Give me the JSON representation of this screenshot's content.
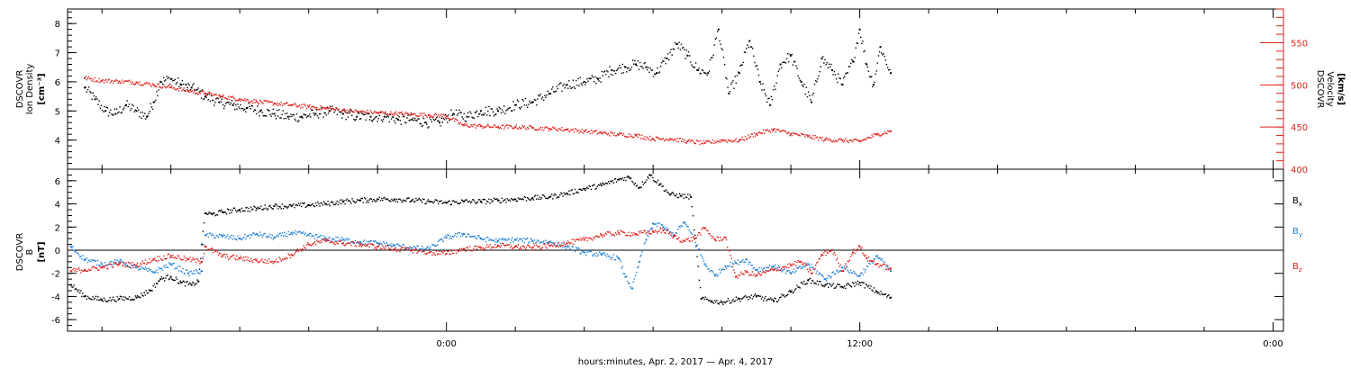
{
  "chart_data": [
    {
      "type": "scatter",
      "panel": "plasma",
      "ylabel_left": [
        "DSCOVR",
        "Ion Density",
        "[cm⁻³]"
      ],
      "ylabel_right": [
        "DSCOVR",
        "Velocity",
        "[km/s]"
      ],
      "ylim_left": [
        3,
        8.5
      ],
      "ylim_right": [
        400,
        590
      ],
      "yticks_left": [
        4,
        5,
        6,
        7,
        8
      ],
      "yticks_right": [
        400,
        450,
        500,
        550
      ],
      "left_axis_color": "#000000",
      "right_axis_color": "#e0201c",
      "series": [
        {
          "axis": "left",
          "color": "#000000",
          "x": [
            -10.5,
            -10.2,
            -9.9,
            -9.6,
            -9.3,
            -9.0,
            -8.7,
            -8.5,
            -8.3,
            -8.0,
            -7.7,
            -7.4,
            -7.0,
            -6.6,
            -6.2,
            -5.8,
            -5.4,
            -5.0,
            -4.6,
            -4.2,
            -3.8,
            -3.4,
            -3.0,
            -2.6,
            -2.2,
            -1.8,
            -1.4,
            -1.0,
            -0.6,
            -0.2,
            0.2,
            0.6,
            1.0,
            1.5,
            2.0,
            2.5,
            3.0,
            3.5,
            4.0,
            4.4,
            4.8,
            5.2,
            5.5,
            5.8,
            6.1,
            6.4,
            6.7,
            7.0,
            7.3,
            7.6,
            7.9,
            8.2,
            8.5,
            8.8,
            9.1,
            9.4,
            9.7,
            10.0,
            10.3,
            10.6,
            10.9,
            11.2,
            11.5,
            11.8,
            12.0,
            12.2,
            12.4,
            12.6,
            12.9
          ],
          "y": [
            5.8,
            5.4,
            5.0,
            4.9,
            5.2,
            5.0,
            4.8,
            5.3,
            6.0,
            6.1,
            5.9,
            5.8,
            5.5,
            5.3,
            5.2,
            5.1,
            5.0,
            4.9,
            4.8,
            4.8,
            4.9,
            5.0,
            4.9,
            4.8,
            4.8,
            4.8,
            4.7,
            4.7,
            4.6,
            4.6,
            4.9,
            4.8,
            5.0,
            5.0,
            5.2,
            5.3,
            5.6,
            5.9,
            6.0,
            6.1,
            6.4,
            6.5,
            6.6,
            6.5,
            6.3,
            6.8,
            7.3,
            6.9,
            6.4,
            6.3,
            7.8,
            5.6,
            6.3,
            7.4,
            6.0,
            5.2,
            6.6,
            6.9,
            6.0,
            5.3,
            6.8,
            6.4,
            5.9,
            6.7,
            7.8,
            6.6,
            5.9,
            7.2,
            6.3
          ]
        },
        {
          "axis": "right",
          "color": "#e0201c",
          "x": [
            -10.5,
            -10.0,
            -9.5,
            -9.0,
            -8.5,
            -8.0,
            -7.5,
            -7.0,
            -6.5,
            -6.0,
            -5.5,
            -5.0,
            -4.5,
            -4.0,
            -3.5,
            -3.0,
            -2.5,
            -2.0,
            -1.5,
            -1.0,
            -0.5,
            0.0,
            0.5,
            1.0,
            1.5,
            2.0,
            2.5,
            3.0,
            3.5,
            4.0,
            4.5,
            5.0,
            5.5,
            6.0,
            6.5,
            7.0,
            7.5,
            8.0,
            8.5,
            9.0,
            9.5,
            10.0,
            10.5,
            11.0,
            11.5,
            12.0,
            12.5,
            12.9
          ],
          "y": [
            508,
            505,
            504,
            503,
            500,
            497,
            493,
            490,
            486,
            483,
            480,
            478,
            476,
            474,
            472,
            470,
            468,
            467,
            466,
            465,
            464,
            463,
            452,
            451,
            450,
            450,
            449,
            448,
            447,
            445,
            443,
            441,
            440,
            436,
            436,
            433,
            431,
            434,
            434,
            442,
            447,
            442,
            439,
            435,
            434,
            433,
            441,
            445
          ]
        }
      ]
    },
    {
      "type": "scatter",
      "panel": "magnetic-field",
      "ylabel_left": [
        "DSCOVR",
        "B",
        "[nT]"
      ],
      "ylim": [
        -7,
        7
      ],
      "yticks": [
        -6,
        -4,
        -2,
        0,
        2,
        4,
        6
      ],
      "zero_line": true,
      "legend": [
        "B",
        "B",
        "B"
      ],
      "legend_subscripts": [
        "x",
        "y",
        "z"
      ],
      "legend_placement": "right",
      "series": [
        {
          "color": "#000000",
          "x": [
            -10.9,
            -10.5,
            -10.0,
            -9.5,
            -9.0,
            -8.6,
            -8.3,
            -8.0,
            -7.7,
            -7.4,
            -7.2,
            -7.1,
            -7.0,
            -6.8,
            -6.5,
            -6.0,
            -5.5,
            -5.0,
            -4.5,
            -4.0,
            -3.5,
            -3.0,
            -2.5,
            -2.0,
            -1.5,
            -1.0,
            -0.5,
            0.0,
            0.5,
            1.0,
            1.5,
            2.0,
            2.5,
            3.0,
            3.5,
            4.0,
            4.5,
            5.0,
            5.3,
            5.6,
            5.9,
            6.2,
            6.5,
            6.8,
            7.1,
            7.4,
            7.7,
            8.0,
            8.5,
            9.0,
            9.5,
            10.0,
            10.5,
            11.0,
            11.5,
            12.0,
            12.5,
            12.9
          ],
          "y": [
            -3.0,
            -4.0,
            -4.3,
            -4.2,
            -4.1,
            -3.5,
            -2.5,
            -2.3,
            -2.8,
            -3.0,
            -2.7,
            0.5,
            3.2,
            3.1,
            3.3,
            3.5,
            3.6,
            3.8,
            3.8,
            3.9,
            4.0,
            4.2,
            4.3,
            4.4,
            4.4,
            4.3,
            4.2,
            4.1,
            4.2,
            4.2,
            4.3,
            4.4,
            4.5,
            4.6,
            4.9,
            5.3,
            5.6,
            6.1,
            6.3,
            5.4,
            6.5,
            5.7,
            4.8,
            4.7,
            4.6,
            -4.2,
            -4.4,
            -4.5,
            -4.2,
            -4.0,
            -4.4,
            -3.6,
            -2.6,
            -3.0,
            -3.2,
            -2.8,
            -3.6,
            -4.1
          ]
        },
        {
          "color": "#1f7fd4",
          "x": [
            -10.9,
            -10.5,
            -10.0,
            -9.5,
            -9.0,
            -8.5,
            -8.0,
            -7.5,
            -7.1,
            -7.0,
            -6.5,
            -6.0,
            -5.5,
            -5.0,
            -4.5,
            -4.0,
            -3.5,
            -3.0,
            -2.5,
            -2.0,
            -1.5,
            -1.0,
            -0.5,
            0.0,
            0.5,
            1.0,
            1.5,
            2.0,
            2.5,
            3.0,
            3.5,
            4.0,
            4.5,
            5.0,
            5.2,
            5.4,
            5.6,
            5.8,
            6.0,
            6.3,
            6.6,
            6.9,
            7.2,
            7.5,
            7.8,
            8.1,
            8.4,
            8.7,
            9.0,
            9.5,
            10.0,
            10.5,
            11.0,
            11.5,
            12.0,
            12.5,
            12.9
          ],
          "y": [
            0.3,
            -0.8,
            -1.2,
            -1.0,
            -1.5,
            -1.9,
            -1.2,
            -2.0,
            -1.8,
            1.3,
            1.2,
            1.0,
            1.4,
            1.1,
            1.5,
            1.3,
            1.0,
            0.9,
            0.7,
            0.6,
            0.4,
            0.2,
            0.1,
            1.1,
            1.4,
            1.0,
            0.8,
            0.9,
            0.8,
            0.7,
            0.3,
            -0.2,
            -0.4,
            -0.7,
            -2.3,
            -3.3,
            -1.0,
            0.9,
            2.3,
            2.0,
            1.3,
            2.4,
            1.0,
            -1.2,
            -2.2,
            -1.4,
            -1.1,
            -0.8,
            -1.7,
            -1.4,
            -2.0,
            -1.2,
            -2.5,
            -1.5,
            -2.2,
            -0.5,
            -1.8
          ]
        },
        {
          "color": "#e0201c",
          "x": [
            -10.9,
            -10.5,
            -10.0,
            -9.5,
            -9.0,
            -8.5,
            -8.0,
            -7.5,
            -7.1,
            -7.0,
            -6.5,
            -6.0,
            -5.5,
            -5.0,
            -4.5,
            -4.0,
            -3.5,
            -3.0,
            -2.5,
            -2.0,
            -1.5,
            -1.0,
            -0.5,
            0.0,
            0.5,
            1.0,
            1.5,
            2.0,
            2.5,
            3.0,
            3.5,
            4.0,
            4.5,
            5.0,
            5.5,
            6.0,
            6.3,
            6.6,
            6.9,
            7.2,
            7.5,
            7.8,
            8.1,
            8.4,
            8.7,
            9.0,
            9.5,
            10.0,
            10.3,
            10.6,
            10.9,
            11.2,
            11.5,
            11.8,
            12.0,
            12.2,
            12.5,
            12.9
          ],
          "y": [
            -1.8,
            -1.7,
            -1.5,
            -1.2,
            -1.3,
            -0.8,
            -0.5,
            -0.8,
            -1.0,
            0.3,
            -0.5,
            -0.7,
            -0.9,
            -1.0,
            -0.4,
            0.5,
            0.8,
            0.6,
            0.5,
            0.3,
            0.1,
            0.0,
            -0.2,
            -0.3,
            0.1,
            0.2,
            0.4,
            0.3,
            0.2,
            0.4,
            0.6,
            0.9,
            1.3,
            1.5,
            1.4,
            1.6,
            1.7,
            1.2,
            0.8,
            1.0,
            1.9,
            0.9,
            1.1,
            -2.3,
            -1.9,
            -2.2,
            -1.7,
            -1.3,
            -1.0,
            -2.0,
            -0.4,
            0.0,
            -1.8,
            -0.2,
            0.3,
            -0.7,
            -1.2,
            -1.6
          ]
        }
      ]
    }
  ],
  "x_axis": {
    "unit": "hours relative to 00:00",
    "xlim": [
      -11,
      24.3
    ],
    "major_ticks": [
      0,
      12,
      24
    ],
    "tick_labels": [
      "0:00",
      "12:00",
      "0:00"
    ],
    "minor_tick_step_hours": 2,
    "xlabel": "hours:minutes, Apr.  2, 2017 — Apr.  4, 2017"
  }
}
